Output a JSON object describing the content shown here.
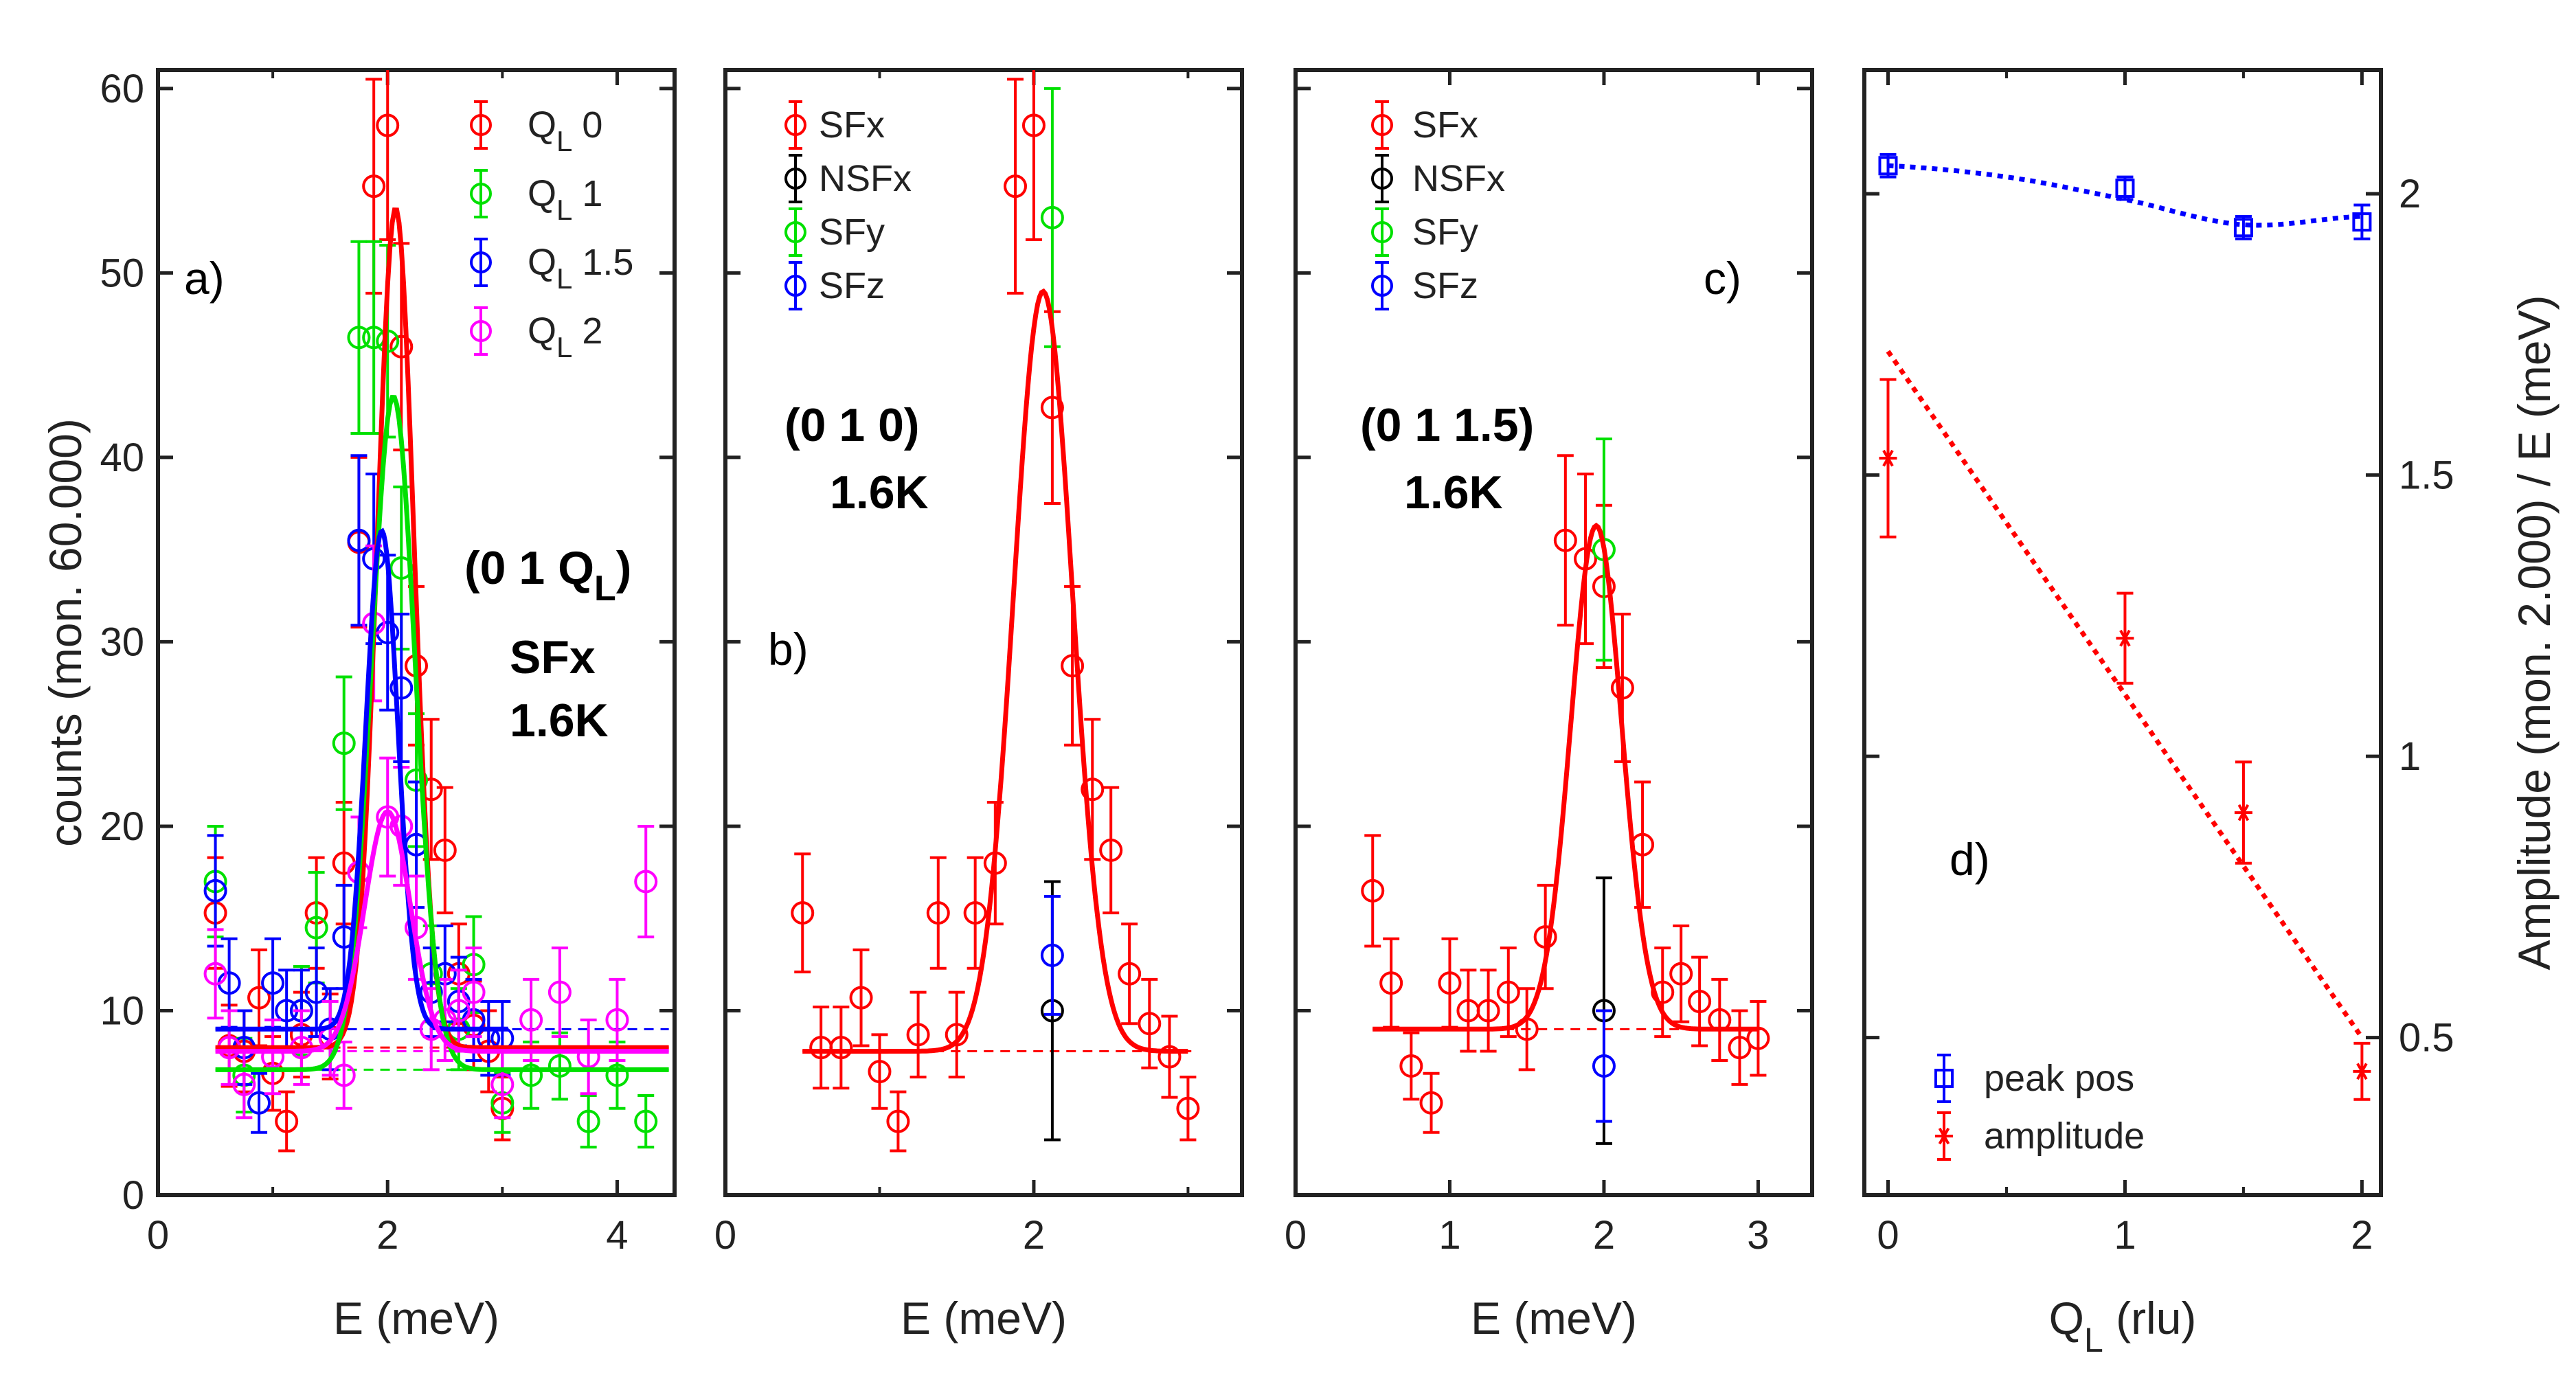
{
  "colors": {
    "red": "#ff0000",
    "green": "#00e000",
    "blue": "#0000ff",
    "magenta": "#ff00ff",
    "black": "#000000"
  },
  "chart_data": [
    {
      "id": "a",
      "type": "scatter",
      "panel_label": "a)",
      "xlabel": "E (meV)",
      "ylabel": "counts (mon. 60.000)",
      "xlim": [
        0,
        4.5
      ],
      "ylim": [
        0,
        61
      ],
      "xticks": [
        "0",
        "2",
        "4"
      ],
      "yticks": [
        "0",
        "10",
        "20",
        "30",
        "40",
        "50",
        "60"
      ],
      "annotation": {
        "q": "(0 1 Q",
        "sub": "L",
        "close": ")",
        "line2": "SFx",
        "line3": "1.6K"
      },
      "legend": [
        {
          "base": "Q",
          "sub": "L",
          "value": "0"
        },
        {
          "base": "Q",
          "sub": "L",
          "value": "1"
        },
        {
          "base": "Q",
          "sub": "L",
          "value": "1.5"
        },
        {
          "base": "Q",
          "sub": "L",
          "value": "2"
        }
      ],
      "series": [
        {
          "name": "QL 0",
          "color": "red",
          "baseline": 8.0,
          "amp": 45.5,
          "center": 2.07,
          "sigma": 0.16,
          "x": [
            0.5,
            0.62,
            0.75,
            0.88,
            1.0,
            1.12,
            1.25,
            1.38,
            1.5,
            1.62,
            1.75,
            1.88,
            2.0,
            2.12,
            2.25,
            2.38,
            2.5,
            2.62,
            2.75,
            2.88,
            3.0
          ],
          "y": [
            15.3,
            8.1,
            7.8,
            10.7,
            6.6,
            4.0,
            8.7,
            15.3,
            8.6,
            18.0,
            35.4,
            54.7,
            58.0,
            46.0,
            28.7,
            22.0,
            18.7,
            12.0,
            9.2,
            7.8,
            4.7
          ],
          "err": [
            3.0,
            2.2,
            2.2,
            2.6,
            2.0,
            1.6,
            2.3,
            3.0,
            2.3,
            3.3,
            4.6,
            5.8,
            6.2,
            5.6,
            4.3,
            3.8,
            3.4,
            2.7,
            2.4,
            2.2,
            1.7
          ]
        },
        {
          "name": "QL 1",
          "color": "green",
          "baseline": 6.8,
          "amp": 36.5,
          "center": 2.05,
          "sigma": 0.19,
          "x": [
            0.5,
            0.75,
            1.25,
            1.38,
            1.62,
            1.75,
            1.88,
            2.0,
            2.12,
            2.25,
            2.38,
            2.62,
            2.75,
            3.0,
            3.25,
            3.5,
            3.75,
            4.0,
            4.25
          ],
          "y": [
            17.0,
            6.5,
            10.0,
            14.5,
            24.5,
            46.5,
            46.5,
            46.3,
            34.0,
            22.5,
            12.0,
            9.0,
            12.5,
            5.0,
            6.5,
            7.0,
            4.0,
            6.5,
            4.0
          ],
          "err": [
            3.0,
            2.0,
            2.4,
            3.0,
            3.6,
            5.2,
            5.2,
            5.2,
            4.4,
            3.6,
            2.6,
            2.2,
            2.6,
            1.6,
            1.8,
            1.8,
            1.4,
            1.8,
            1.4
          ]
        },
        {
          "name": "QL 1.5",
          "color": "blue",
          "baseline": 9.0,
          "amp": 27.0,
          "center": 1.95,
          "sigma": 0.14,
          "x": [
            0.5,
            0.62,
            0.75,
            0.88,
            1.0,
            1.12,
            1.25,
            1.38,
            1.5,
            1.62,
            1.75,
            1.88,
            2.0,
            2.12,
            2.25,
            2.38,
            2.5,
            2.62,
            2.75,
            2.88,
            3.0
          ],
          "y": [
            16.5,
            11.5,
            8.0,
            5.0,
            11.5,
            10.0,
            10.0,
            11.0,
            9.0,
            14.0,
            35.5,
            34.5,
            30.5,
            27.5,
            19.0,
            11.0,
            12.0,
            10.5,
            9.5,
            8.5,
            8.5
          ],
          "err": [
            3.0,
            2.4,
            2.0,
            1.6,
            2.4,
            2.2,
            2.2,
            2.4,
            2.2,
            2.8,
            4.6,
            4.6,
            4.2,
            4.0,
            3.4,
            2.4,
            2.6,
            2.4,
            2.2,
            2.0,
            2.0
          ]
        },
        {
          "name": "QL 2",
          "color": "magenta",
          "baseline": 7.8,
          "amp": 13.0,
          "center": 2.0,
          "sigma": 0.2,
          "x": [
            0.5,
            0.62,
            0.75,
            1.0,
            1.25,
            1.5,
            1.62,
            1.75,
            1.88,
            2.0,
            2.12,
            2.25,
            2.38,
            2.5,
            2.62,
            2.75,
            3.0,
            3.25,
            3.5,
            3.75,
            4.0,
            4.25
          ],
          "y": [
            12.0,
            8.0,
            6.0,
            7.5,
            8.0,
            8.5,
            6.5,
            17.5,
            31.0,
            20.5,
            20.0,
            14.5,
            9.0,
            9.5,
            10.0,
            11.0,
            6.0,
            9.5,
            11.0,
            7.5,
            9.5,
            17.0
          ],
          "err": [
            2.4,
            2.0,
            1.8,
            2.0,
            2.0,
            2.0,
            1.8,
            3.0,
            4.2,
            3.2,
            3.2,
            2.8,
            2.2,
            2.2,
            2.2,
            2.4,
            1.8,
            2.2,
            2.4,
            2.0,
            2.2,
            3.0
          ]
        }
      ]
    },
    {
      "id": "b",
      "type": "scatter",
      "panel_label": "b)",
      "xlabel": "E (meV)",
      "xlim": [
        0,
        3.35
      ],
      "ylim": [
        0,
        61
      ],
      "xticks": [
        "0",
        "2"
      ],
      "annotation": {
        "line1": "(0 1 0)",
        "line2": "1.6K"
      },
      "legend": [
        "SFx",
        "NSFx",
        "SFy",
        "SFz"
      ],
      "baseline": 7.8,
      "fit": {
        "amp": 41.2,
        "center": 2.06,
        "sigma": 0.19
      },
      "series": [
        {
          "name": "SFx",
          "color": "red",
          "x": [
            0.5,
            0.62,
            0.75,
            0.88,
            1.0,
            1.12,
            1.25,
            1.38,
            1.5,
            1.62,
            1.75,
            1.88,
            2.0,
            2.12,
            2.25,
            2.38,
            2.5,
            2.62,
            2.75,
            2.88,
            3.0
          ],
          "y": [
            15.3,
            8.0,
            8.0,
            10.7,
            6.7,
            4.0,
            8.7,
            15.3,
            8.7,
            15.3,
            18.0,
            54.7,
            58.0,
            42.7,
            28.7,
            22.0,
            18.7,
            12.0,
            9.3,
            7.5,
            4.7
          ],
          "err": [
            3.2,
            2.2,
            2.2,
            2.6,
            2.0,
            1.6,
            2.3,
            3.0,
            2.3,
            3.0,
            3.3,
            5.8,
            6.2,
            5.2,
            4.3,
            3.8,
            3.4,
            2.7,
            2.4,
            2.2,
            1.7
          ]
        },
        {
          "name": "NSFx",
          "color": "black",
          "x": [
            2.12
          ],
          "y": [
            10.0
          ],
          "err": [
            7.0
          ]
        },
        {
          "name": "SFy",
          "color": "green",
          "x": [
            2.12
          ],
          "y": [
            53.0
          ],
          "err": [
            7.0
          ]
        },
        {
          "name": "SFz",
          "color": "blue",
          "x": [
            2.12
          ],
          "y": [
            13.0
          ],
          "err": [
            3.2
          ]
        }
      ]
    },
    {
      "id": "c",
      "type": "scatter",
      "panel_label": "c)",
      "xlabel": "E (meV)",
      "xlim": [
        0,
        3.35
      ],
      "ylim": [
        0,
        61
      ],
      "xticks": [
        "0",
        "1",
        "2",
        "3"
      ],
      "annotation": {
        "line1": "(0 1 1.5)",
        "line2": "1.6K"
      },
      "legend": [
        "SFx",
        "NSFx",
        "SFy",
        "SFz"
      ],
      "baseline": 9.0,
      "fit": {
        "amp": 27.3,
        "center": 1.95,
        "sigma": 0.165
      },
      "series": [
        {
          "name": "SFx",
          "color": "red",
          "x": [
            0.5,
            0.62,
            0.75,
            0.88,
            1.0,
            1.12,
            1.25,
            1.38,
            1.5,
            1.62,
            1.75,
            1.88,
            2.0,
            2.12,
            2.25,
            2.38,
            2.5,
            2.62,
            2.75,
            2.88,
            3.0
          ],
          "y": [
            16.5,
            11.5,
            7.0,
            5.0,
            11.5,
            10.0,
            10.0,
            11.0,
            9.0,
            14.0,
            35.5,
            34.5,
            33.0,
            27.5,
            19.0,
            11.0,
            12.0,
            10.5,
            9.5,
            8.0,
            8.5
          ],
          "err": [
            3.0,
            2.4,
            1.8,
            1.6,
            2.4,
            2.2,
            2.2,
            2.4,
            2.2,
            2.8,
            4.6,
            4.6,
            4.4,
            4.0,
            3.4,
            2.4,
            2.6,
            2.4,
            2.2,
            2.0,
            2.0
          ]
        },
        {
          "name": "NSFx",
          "color": "black",
          "x": [
            2.0
          ],
          "y": [
            10.0
          ],
          "err": [
            7.2
          ]
        },
        {
          "name": "SFy",
          "color": "green",
          "x": [
            2.0
          ],
          "y": [
            35.0
          ],
          "err": [
            6.0
          ]
        },
        {
          "name": "SFz",
          "color": "blue",
          "x": [
            2.0
          ],
          "y": [
            7.0
          ],
          "err": [
            3.0
          ]
        }
      ]
    },
    {
      "id": "d",
      "type": "scatter",
      "panel_label": "d)",
      "xlabel": {
        "base": "Q",
        "sub": "L",
        "rest": " (rlu)"
      },
      "ylabel": "Amplitude (mon. 2.000) / E (meV)",
      "xlim": [
        -0.1,
        2.08
      ],
      "ylim": [
        0.22,
        2.22
      ],
      "xticks": [
        "0",
        "1",
        "2"
      ],
      "yticks": [
        "0.5",
        "1",
        "1.5",
        "2"
      ],
      "legend": [
        "peak pos",
        "amplitude"
      ],
      "series": [
        {
          "name": "peak pos",
          "color": "blue",
          "marker": "square",
          "x": [
            0,
            1,
            1.5,
            2
          ],
          "y": [
            2.05,
            2.01,
            1.94,
            1.95
          ],
          "err": [
            0.02,
            0.02,
            0.02,
            0.03
          ]
        },
        {
          "name": "amplitude",
          "color": "red",
          "marker": "star",
          "x": [
            0,
            1,
            1.5,
            2
          ],
          "y": [
            1.53,
            1.21,
            0.9,
            0.44
          ],
          "err": [
            0.14,
            0.08,
            0.09,
            0.05
          ]
        }
      ],
      "fits": [
        {
          "series": "peak pos",
          "color": "blue",
          "x": [
            0,
            0.5,
            1,
            1.5,
            2
          ],
          "y": [
            2.05,
            2.03,
            1.99,
            1.945,
            1.96
          ]
        },
        {
          "series": "amplitude",
          "color": "red",
          "x": [
            0,
            2
          ],
          "y": [
            1.72,
            0.5
          ]
        }
      ]
    }
  ]
}
